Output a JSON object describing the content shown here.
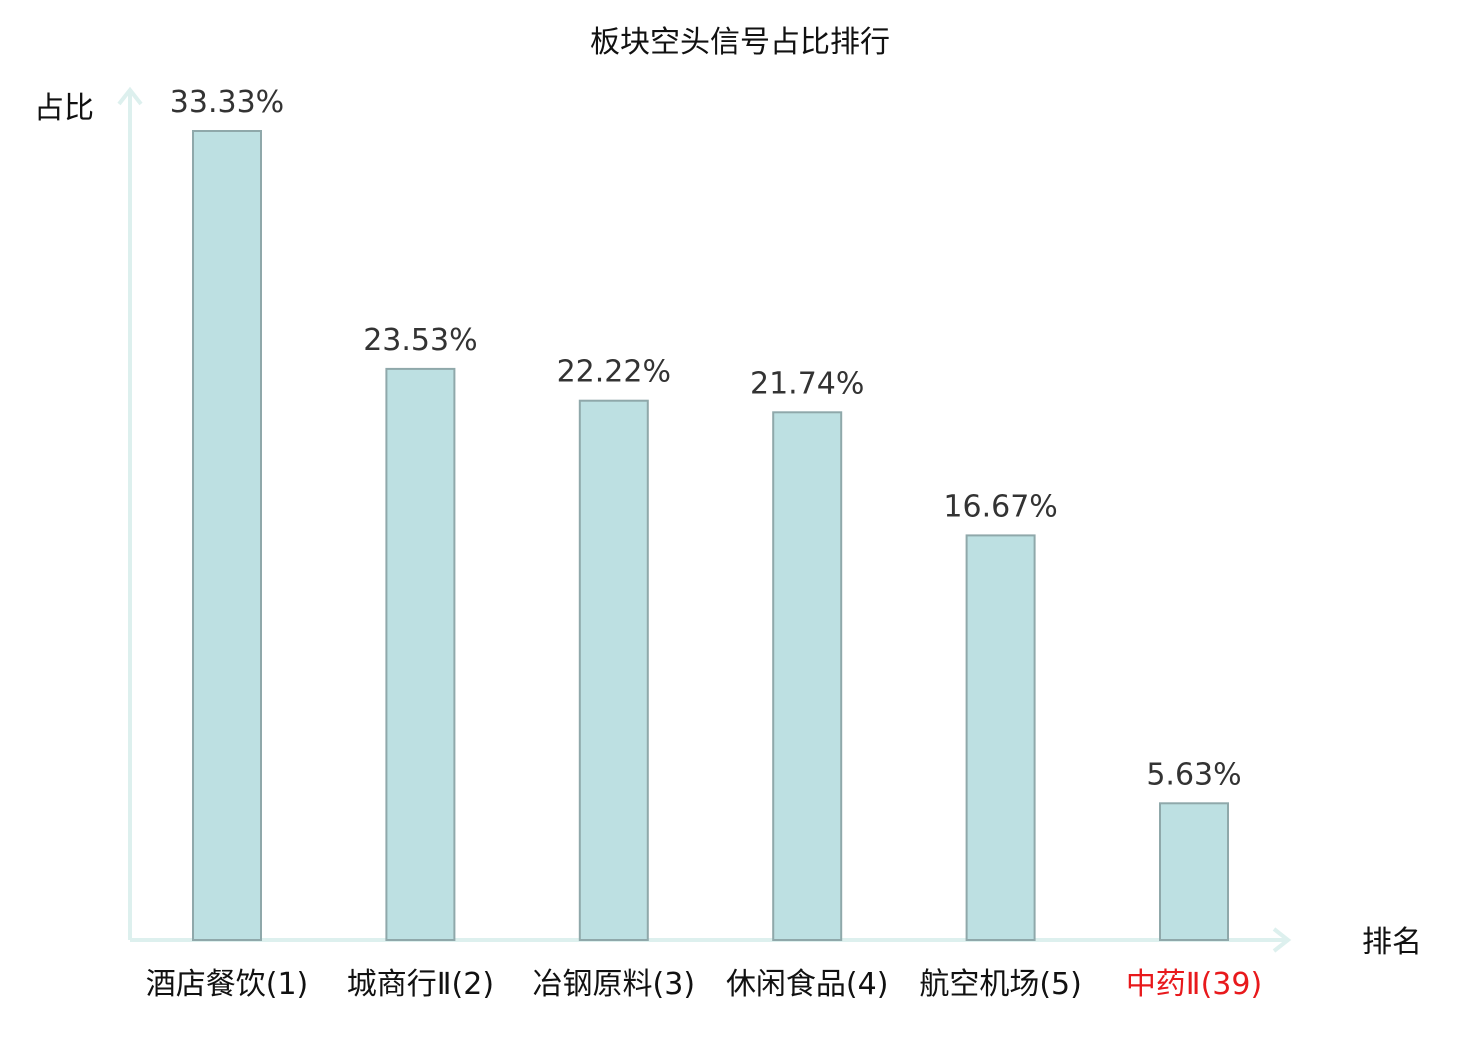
{
  "chart_data": {
    "type": "bar",
    "title": "板块空头信号占比排行",
    "ylabel": "占比",
    "xlabel": "排名",
    "categories": [
      "酒店餐饮(1)",
      "城商行Ⅱ(2)",
      "冶钢原料(3)",
      "休闲食品(4)",
      "航空机场(5)",
      "中药Ⅱ(39)"
    ],
    "values": [
      33.33,
      23.53,
      22.22,
      21.74,
      16.67,
      5.63
    ],
    "value_labels": [
      "33.33%",
      "23.53%",
      "22.22%",
      "21.74%",
      "16.67%",
      "5.63%"
    ],
    "ylim": [
      0,
      33.33
    ],
    "grid": false,
    "legend": "none",
    "colors": {
      "bar_fill": "#BDE0E2",
      "bar_stroke": "#8FA8AA",
      "axis": "#DDF0EE",
      "highlight_label": "#E8191C",
      "label": "#111111"
    },
    "highlight_index": 5
  }
}
